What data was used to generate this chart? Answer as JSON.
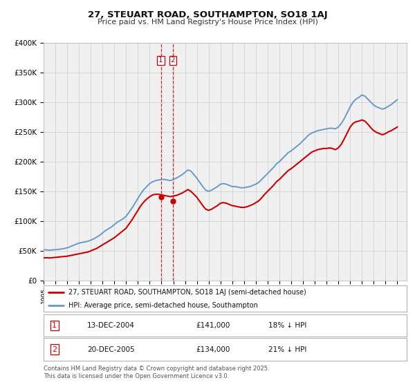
{
  "title": "27, STEUART ROAD, SOUTHAMPTON, SO18 1AJ",
  "subtitle": "Price paid vs. HM Land Registry's House Price Index (HPI)",
  "legend_line1": "27, STEUART ROAD, SOUTHAMPTON, SO18 1AJ (semi-detached house)",
  "legend_line2": "HPI: Average price, semi-detached house, Southampton",
  "footnote": "Contains HM Land Registry data © Crown copyright and database right 2025.\nThis data is licensed under the Open Government Licence v3.0.",
  "table_row1": [
    "1",
    "13-DEC-2004",
    "£141,000",
    "18% ↓ HPI"
  ],
  "table_row2": [
    "2",
    "20-DEC-2005",
    "£134,000",
    "21% ↓ HPI"
  ],
  "ylim": [
    0,
    400000
  ],
  "yticks": [
    0,
    50000,
    100000,
    150000,
    200000,
    250000,
    300000,
    350000,
    400000
  ],
  "ytick_labels": [
    "£0",
    "£50K",
    "£100K",
    "£150K",
    "£200K",
    "£250K",
    "£300K",
    "£350K",
    "£400K"
  ],
  "xlim_start": 1995.0,
  "xlim_end": 2025.8,
  "red_color": "#cc0000",
  "blue_color": "#6699cc",
  "vline_color": "#cc0000",
  "bg_color": "#ffffff",
  "plot_bg_color": "#f0f0f0",
  "sale1_x": 2004.95,
  "sale1_y": 141000,
  "sale2_x": 2005.97,
  "sale2_y": 134000,
  "marker1_label": "1",
  "marker2_label": "2",
  "hpi_x": [
    1995.0,
    1995.25,
    1995.5,
    1995.75,
    1996.0,
    1996.25,
    1996.5,
    1996.75,
    1997.0,
    1997.25,
    1997.5,
    1997.75,
    1998.0,
    1998.25,
    1998.5,
    1998.75,
    1999.0,
    1999.25,
    1999.5,
    1999.75,
    2000.0,
    2000.25,
    2000.5,
    2000.75,
    2001.0,
    2001.25,
    2001.5,
    2001.75,
    2002.0,
    2002.25,
    2002.5,
    2002.75,
    2003.0,
    2003.25,
    2003.5,
    2003.75,
    2004.0,
    2004.25,
    2004.5,
    2004.75,
    2005.0,
    2005.25,
    2005.5,
    2005.75,
    2006.0,
    2006.25,
    2006.5,
    2006.75,
    2007.0,
    2007.25,
    2007.5,
    2007.75,
    2008.0,
    2008.25,
    2008.5,
    2008.75,
    2009.0,
    2009.25,
    2009.5,
    2009.75,
    2010.0,
    2010.25,
    2010.5,
    2010.75,
    2011.0,
    2011.25,
    2011.5,
    2011.75,
    2012.0,
    2012.25,
    2012.5,
    2012.75,
    2013.0,
    2013.25,
    2013.5,
    2013.75,
    2014.0,
    2014.25,
    2014.5,
    2014.75,
    2015.0,
    2015.25,
    2015.5,
    2015.75,
    2016.0,
    2016.25,
    2016.5,
    2016.75,
    2017.0,
    2017.25,
    2017.5,
    2017.75,
    2018.0,
    2018.25,
    2018.5,
    2018.75,
    2019.0,
    2019.25,
    2019.5,
    2019.75,
    2020.0,
    2020.25,
    2020.5,
    2020.75,
    2021.0,
    2021.25,
    2021.5,
    2021.75,
    2022.0,
    2022.25,
    2022.5,
    2022.75,
    2023.0,
    2023.25,
    2023.5,
    2023.75,
    2024.0,
    2024.25,
    2024.5,
    2024.75,
    2025.0
  ],
  "hpi_y": [
    52000,
    51500,
    51000,
    51500,
    52000,
    52500,
    53000,
    54000,
    55000,
    57000,
    59000,
    61000,
    63000,
    64000,
    65000,
    66000,
    68000,
    70000,
    73000,
    76000,
    80000,
    84000,
    87000,
    90000,
    94000,
    98000,
    101000,
    104000,
    108000,
    115000,
    122000,
    130000,
    138000,
    146000,
    153000,
    158000,
    163000,
    166000,
    168000,
    169000,
    170000,
    170000,
    169000,
    168000,
    170000,
    172000,
    175000,
    178000,
    182000,
    186000,
    184000,
    178000,
    172000,
    165000,
    158000,
    152000,
    150000,
    152000,
    155000,
    158000,
    162000,
    163000,
    162000,
    160000,
    158000,
    158000,
    157000,
    156000,
    156000,
    157000,
    158000,
    160000,
    162000,
    165000,
    170000,
    175000,
    180000,
    185000,
    190000,
    196000,
    200000,
    205000,
    210000,
    215000,
    218000,
    222000,
    226000,
    230000,
    235000,
    240000,
    245000,
    248000,
    250000,
    252000,
    253000,
    254000,
    255000,
    256000,
    256000,
    255000,
    258000,
    264000,
    272000,
    282000,
    292000,
    300000,
    305000,
    308000,
    312000,
    310000,
    305000,
    300000,
    295000,
    292000,
    290000,
    288000,
    290000,
    293000,
    296000,
    300000,
    304000
  ],
  "red_x": [
    1995.0,
    1995.25,
    1995.5,
    1995.75,
    1996.0,
    1996.25,
    1996.5,
    1996.75,
    1997.0,
    1997.25,
    1997.5,
    1997.75,
    1998.0,
    1998.25,
    1998.5,
    1998.75,
    1999.0,
    1999.25,
    1999.5,
    1999.75,
    2000.0,
    2000.25,
    2000.5,
    2000.75,
    2001.0,
    2001.25,
    2001.5,
    2001.75,
    2002.0,
    2002.25,
    2002.5,
    2002.75,
    2003.0,
    2003.25,
    2003.5,
    2003.75,
    2004.0,
    2004.25,
    2004.5,
    2004.75,
    2005.0,
    2005.25,
    2005.5,
    2005.75,
    2006.0,
    2006.25,
    2006.5,
    2006.75,
    2007.0,
    2007.25,
    2007.5,
    2007.75,
    2008.0,
    2008.25,
    2008.5,
    2008.75,
    2009.0,
    2009.25,
    2009.5,
    2009.75,
    2010.0,
    2010.25,
    2010.5,
    2010.75,
    2011.0,
    2011.25,
    2011.5,
    2011.75,
    2012.0,
    2012.25,
    2012.5,
    2012.75,
    2013.0,
    2013.25,
    2013.5,
    2013.75,
    2014.0,
    2014.25,
    2014.5,
    2014.75,
    2015.0,
    2015.25,
    2015.5,
    2015.75,
    2016.0,
    2016.25,
    2016.5,
    2016.75,
    2017.0,
    2017.25,
    2017.5,
    2017.75,
    2018.0,
    2018.25,
    2018.5,
    2018.75,
    2019.0,
    2019.25,
    2019.5,
    2019.75,
    2020.0,
    2020.25,
    2020.5,
    2020.75,
    2021.0,
    2021.25,
    2021.5,
    2021.75,
    2022.0,
    2022.25,
    2022.5,
    2022.75,
    2023.0,
    2023.25,
    2023.5,
    2023.75,
    2024.0,
    2024.25,
    2024.5,
    2024.75,
    2025.0
  ],
  "red_y": [
    38000,
    38500,
    38000,
    38500,
    39000,
    39500,
    40000,
    40500,
    41000,
    42000,
    43000,
    44000,
    45000,
    46000,
    47000,
    48000,
    50000,
    52000,
    54000,
    57000,
    60000,
    63000,
    66000,
    69000,
    72000,
    76000,
    80000,
    84000,
    88000,
    95000,
    102000,
    110000,
    118000,
    126000,
    132000,
    137000,
    141000,
    144000,
    145000,
    145000,
    144000,
    143000,
    142000,
    141000,
    142000,
    143000,
    145000,
    147000,
    150000,
    153000,
    150000,
    145000,
    140000,
    133000,
    126000,
    120000,
    118000,
    120000,
    123000,
    126000,
    130000,
    131000,
    130000,
    128000,
    126000,
    125000,
    124000,
    123000,
    123000,
    124000,
    126000,
    128000,
    131000,
    134000,
    139000,
    145000,
    150000,
    155000,
    160000,
    166000,
    170000,
    175000,
    180000,
    185000,
    188000,
    192000,
    196000,
    200000,
    204000,
    208000,
    212000,
    216000,
    218000,
    220000,
    221000,
    222000,
    222000,
    223000,
    222000,
    220000,
    223000,
    229000,
    238000,
    248000,
    258000,
    264000,
    267000,
    268000,
    270000,
    268000,
    263000,
    257000,
    252000,
    249000,
    247000,
    245000,
    247000,
    250000,
    252000,
    255000,
    258000
  ]
}
